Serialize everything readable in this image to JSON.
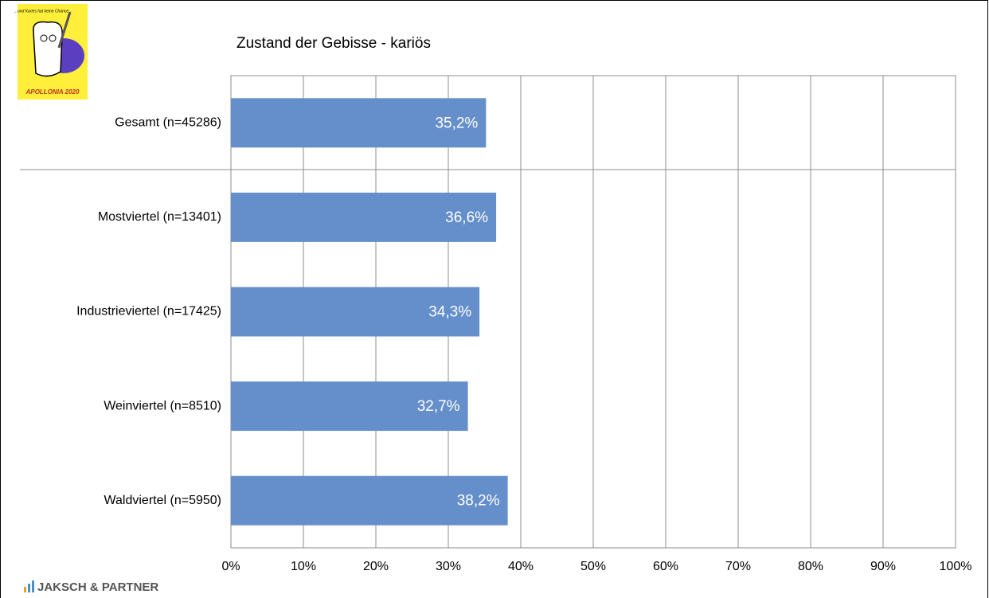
{
  "chart_data": {
    "type": "barh",
    "title": "Zustand der Gebisse - kariös",
    "categories": [
      "Gesamt (n=45286)",
      "Mostviertel (n=13401)",
      "Industrieviertel (n=17425)",
      "Weinviertel (n=8510)",
      "Waldviertel (n=5950)"
    ],
    "values": [
      35.2,
      36.6,
      34.3,
      32.7,
      38.2
    ],
    "value_labels": [
      "35,2%",
      "36,6%",
      "34,3%",
      "32,7%",
      "38,2%"
    ],
    "color": "#658fcb",
    "xlim": [
      0,
      100
    ],
    "xticks": [
      {
        "value": 0,
        "label": "0%"
      },
      {
        "value": 10,
        "label": "10%"
      },
      {
        "value": 20,
        "label": "20%"
      },
      {
        "value": 30,
        "label": "30%"
      },
      {
        "value": 40,
        "label": "40%"
      },
      {
        "value": 50,
        "label": "50%"
      },
      {
        "value": 60,
        "label": "60%"
      },
      {
        "value": 70,
        "label": "70%"
      },
      {
        "value": 80,
        "label": "80%"
      },
      {
        "value": 90,
        "label": "90%"
      },
      {
        "value": 100,
        "label": "100%"
      }
    ],
    "grid": true
  },
  "logo": {
    "slogan": "...und Karies hat keine Chance",
    "name": "APOLLONIA 2020"
  },
  "footer": {
    "brand": "JAKSCH & PARTNER"
  }
}
